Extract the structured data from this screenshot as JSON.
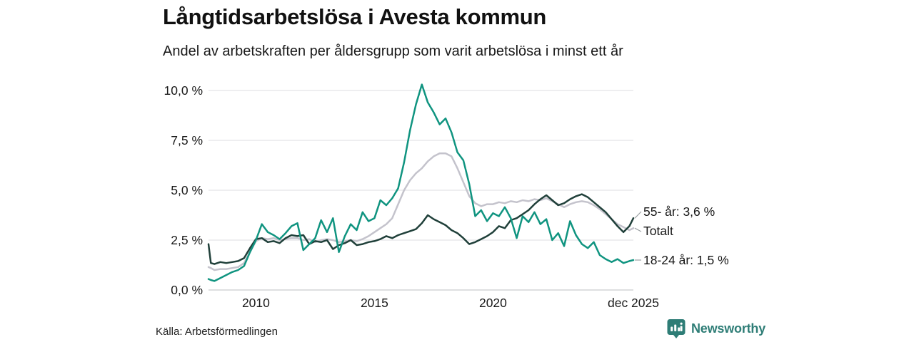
{
  "header": {
    "title": "Långtidsarbetslösa i Avesta kommun",
    "subtitle": "Andel av arbetskraften per åldersgrupp som varit arbetslösa i minst ett år"
  },
  "footer": {
    "source": "Källa: Arbetsförmedlingen",
    "brand": "Newsworthy"
  },
  "colors": {
    "teal_series": "#109480",
    "dark_series": "#20403a",
    "gray_series": "#c4c3cc",
    "grid": "#e4e4e6",
    "axis": "#c9ccce",
    "connector": "#9aa0a3",
    "text": "#1a1a1a",
    "brand_teal": "#2e7d76"
  },
  "chart_data": {
    "type": "line",
    "title": "Långtidsarbetslösa i Avesta kommun",
    "subtitle": "Andel av arbetskraften per åldersgrupp som varit arbetslösa i minst ett år",
    "unit": "%",
    "grid": true,
    "legend_position": "right-end-labels",
    "x_range": [
      2008,
      2025.92
    ],
    "ylim": [
      0,
      10
    ],
    "yticks": [
      0,
      2.5,
      5,
      7.5,
      10
    ],
    "ytick_labels": [
      "0,0 %",
      "2,5 %",
      "5,0 %",
      "7,5 %",
      "10,0 %"
    ],
    "xticks": [
      2010,
      2015,
      2020,
      2025.92
    ],
    "xtick_labels": [
      "2010",
      "2015",
      "2020",
      "dec 2025"
    ],
    "x": [
      2008,
      2008.1,
      2008.25,
      2008.5,
      2008.75,
      2009,
      2009.25,
      2009.5,
      2009.75,
      2010,
      2010.25,
      2010.5,
      2010.75,
      2011,
      2011.25,
      2011.5,
      2011.75,
      2012,
      2012.25,
      2012.5,
      2012.75,
      2013,
      2013.25,
      2013.5,
      2013.75,
      2014,
      2014.25,
      2014.5,
      2014.75,
      2015,
      2015.25,
      2015.5,
      2015.75,
      2016,
      2016.25,
      2016.5,
      2016.75,
      2017,
      2017.25,
      2017.5,
      2017.75,
      2018,
      2018.25,
      2018.5,
      2018.75,
      2019,
      2019.25,
      2019.5,
      2019.75,
      2020,
      2020.25,
      2020.5,
      2020.75,
      2021,
      2021.25,
      2021.5,
      2021.75,
      2022,
      2022.25,
      2022.5,
      2022.75,
      2023,
      2023.25,
      2023.5,
      2023.75,
      2024,
      2024.25,
      2024.5,
      2024.75,
      2025,
      2025.25,
      2025.5,
      2025.75,
      2025.92
    ],
    "series": [
      {
        "name": "Totalt",
        "color": "#c4c3cc",
        "values": [
          1.15,
          1.1,
          1.0,
          1.05,
          1.05,
          1.1,
          1.15,
          1.35,
          1.9,
          2.45,
          2.6,
          2.55,
          2.6,
          2.5,
          2.55,
          2.6,
          2.6,
          2.5,
          2.55,
          2.4,
          2.5,
          2.55,
          2.5,
          2.4,
          2.45,
          2.5,
          2.45,
          2.55,
          2.7,
          2.9,
          3.1,
          3.3,
          3.6,
          4.3,
          5.0,
          5.5,
          5.85,
          6.1,
          6.45,
          6.7,
          6.85,
          6.85,
          6.7,
          6.1,
          5.4,
          4.7,
          4.35,
          4.2,
          4.3,
          4.3,
          4.4,
          4.35,
          4.45,
          4.4,
          4.5,
          4.45,
          4.55,
          4.5,
          4.6,
          4.45,
          4.3,
          4.15,
          4.3,
          4.4,
          4.45,
          4.4,
          4.25,
          4.05,
          3.8,
          3.55,
          3.3,
          3.15,
          3.0,
          3.1
        ]
      },
      {
        "name": "55- år",
        "color": "#20403a",
        "values": [
          2.3,
          1.35,
          1.3,
          1.4,
          1.35,
          1.4,
          1.45,
          1.6,
          2.1,
          2.55,
          2.6,
          2.4,
          2.45,
          2.35,
          2.6,
          2.75,
          2.7,
          2.75,
          2.3,
          2.45,
          2.4,
          2.5,
          2.05,
          2.25,
          2.35,
          2.5,
          2.25,
          2.3,
          2.4,
          2.45,
          2.55,
          2.7,
          2.6,
          2.75,
          2.85,
          2.95,
          3.05,
          3.35,
          3.75,
          3.55,
          3.4,
          3.25,
          3.0,
          2.85,
          2.6,
          2.3,
          2.4,
          2.55,
          2.7,
          2.9,
          3.2,
          3.1,
          3.5,
          3.6,
          3.8,
          4.0,
          4.3,
          4.55,
          4.75,
          4.5,
          4.25,
          4.35,
          4.55,
          4.7,
          4.8,
          4.65,
          4.4,
          4.15,
          3.9,
          3.55,
          3.2,
          2.9,
          3.2,
          3.6
        ]
      },
      {
        "name": "18-24 år",
        "color": "#109480",
        "values": [
          0.55,
          0.5,
          0.45,
          0.6,
          0.75,
          0.9,
          1.0,
          1.2,
          1.9,
          2.5,
          3.3,
          2.9,
          2.75,
          2.55,
          2.85,
          3.2,
          3.35,
          2.0,
          2.3,
          2.6,
          3.5,
          2.9,
          3.6,
          1.9,
          2.7,
          3.3,
          3.0,
          3.9,
          3.45,
          3.6,
          4.5,
          4.25,
          4.6,
          5.1,
          6.4,
          8.0,
          9.3,
          10.3,
          9.4,
          8.9,
          8.3,
          8.6,
          7.9,
          6.9,
          6.5,
          5.3,
          3.7,
          4.0,
          3.45,
          3.85,
          3.7,
          4.15,
          3.6,
          2.6,
          3.7,
          3.4,
          3.9,
          3.3,
          3.55,
          2.5,
          2.85,
          2.2,
          3.45,
          2.75,
          2.3,
          2.1,
          2.4,
          1.75,
          1.55,
          1.4,
          1.55,
          1.35,
          1.45,
          1.5
        ]
      }
    ],
    "annotations": [
      {
        "text": "55- år: 3,6 %",
        "series": "55- år",
        "value_y": 3.6
      },
      {
        "text": "Totalt",
        "series": "Totalt",
        "value_y": 3.1
      },
      {
        "text": "18-24 år: 1,5 %",
        "series": "18-24 år",
        "value_y": 1.5
      }
    ]
  }
}
